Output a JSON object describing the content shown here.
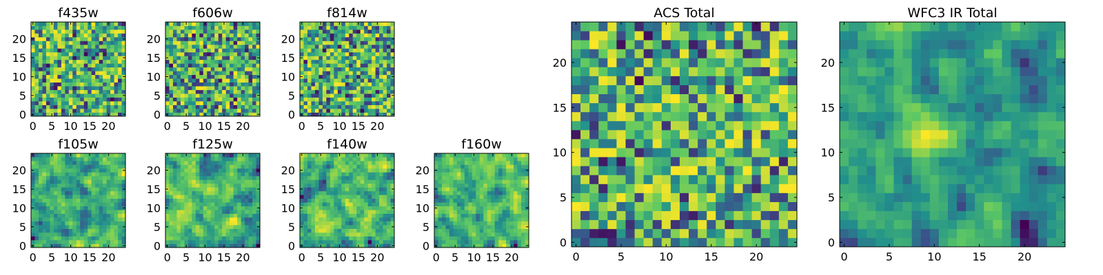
{
  "figure": {
    "background": "#ffffff",
    "colormap": "viridis",
    "colormap_stops": [
      "#440154",
      "#3b528b",
      "#21918c",
      "#5ec962",
      "#fde725"
    ]
  },
  "chart_data": [
    {
      "id": "f435w",
      "type": "heatmap",
      "title": "f435w",
      "grid_size": 25,
      "pixel_scale": "fine",
      "xlim": [
        0,
        24
      ],
      "ylim": [
        0,
        24
      ],
      "xticks": [
        0,
        5,
        10,
        15,
        20
      ],
      "yticks": [
        0,
        5,
        10,
        15,
        20
      ],
      "grid": false,
      "seed": 11,
      "smoothing": 0
    },
    {
      "id": "f606w",
      "type": "heatmap",
      "title": "f606w",
      "grid_size": 25,
      "pixel_scale": "fine",
      "xlim": [
        0,
        24
      ],
      "ylim": [
        0,
        24
      ],
      "xticks": [
        0,
        5,
        10,
        15,
        20
      ],
      "yticks": [
        0,
        5,
        10,
        15,
        20
      ],
      "grid": false,
      "seed": 23,
      "smoothing": 0
    },
    {
      "id": "f814w",
      "type": "heatmap",
      "title": "f814w",
      "grid_size": 25,
      "pixel_scale": "fine",
      "xlim": [
        0,
        24
      ],
      "ylim": [
        0,
        24
      ],
      "xticks": [
        0,
        5,
        10,
        15,
        20
      ],
      "yticks": [
        0,
        5,
        10,
        15,
        20
      ],
      "grid": false,
      "seed": 37,
      "smoothing": 0
    },
    {
      "id": "f105w",
      "type": "heatmap",
      "title": "f105w",
      "grid_size": 25,
      "pixel_scale": "fine",
      "xlim": [
        0,
        24
      ],
      "ylim": [
        0,
        24
      ],
      "xticks": [
        0,
        5,
        10,
        15,
        20
      ],
      "yticks": [
        0,
        5,
        10,
        15,
        20
      ],
      "grid": false,
      "seed": 41,
      "smoothing": 1
    },
    {
      "id": "f125w",
      "type": "heatmap",
      "title": "f125w",
      "grid_size": 25,
      "pixel_scale": "fine",
      "xlim": [
        0,
        24
      ],
      "ylim": [
        0,
        24
      ],
      "xticks": [
        0,
        5,
        10,
        15,
        20
      ],
      "yticks": [
        0,
        5,
        10,
        15,
        20
      ],
      "grid": false,
      "seed": 53,
      "smoothing": 1
    },
    {
      "id": "f140w",
      "type": "heatmap",
      "title": "f140w",
      "grid_size": 25,
      "pixel_scale": "fine",
      "xlim": [
        0,
        24
      ],
      "ylim": [
        0,
        24
      ],
      "xticks": [
        0,
        5,
        10,
        15,
        20
      ],
      "yticks": [
        0,
        5,
        10,
        15,
        20
      ],
      "grid": false,
      "seed": 67,
      "smoothing": 1
    },
    {
      "id": "f160w",
      "type": "heatmap",
      "title": "f160w",
      "grid_size": 25,
      "pixel_scale": "fine",
      "xlim": [
        0,
        24
      ],
      "ylim": [
        0,
        24
      ],
      "xticks": [
        0,
        5,
        10,
        15,
        20
      ],
      "yticks": [
        0,
        5,
        10,
        15,
        20
      ],
      "grid": false,
      "seed": 79,
      "smoothing": 1
    },
    {
      "id": "acs_total",
      "type": "heatmap",
      "title": "ACS Total",
      "grid_size": 25,
      "xlim": [
        0,
        24
      ],
      "ylim": [
        0,
        24
      ],
      "xticks": [
        0,
        5,
        10,
        15,
        20
      ],
      "yticks": [
        0,
        5,
        10,
        15,
        20
      ],
      "grid": false,
      "seed": 97,
      "smoothing": 0
    },
    {
      "id": "wfc3_ir_total",
      "type": "heatmap",
      "title": "WFC3 IR Total",
      "grid_size": 25,
      "xlim": [
        0,
        24
      ],
      "ylim": [
        0,
        24
      ],
      "xticks": [
        0,
        5,
        10,
        15,
        20
      ],
      "yticks": [
        0,
        5,
        10,
        15,
        20
      ],
      "grid": false,
      "seed": 131,
      "smoothing": 1,
      "bright_source": {
        "col": 10,
        "row": 12
      }
    }
  ]
}
